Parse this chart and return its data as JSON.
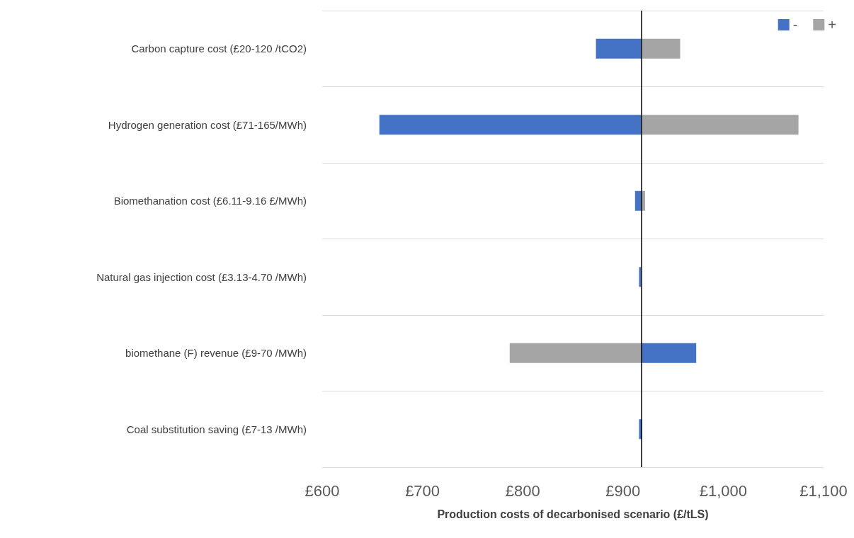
{
  "chart_data": {
    "type": "bar",
    "orientation": "horizontal",
    "xlabel": "Production costs of decarbonised scenario (£/tLS)",
    "categories": [
      "Carbon capture cost (£20-120 /tCO2)",
      "Hydrogen generation cost (£71-165/MWh)",
      "Biomethanation cost (£6.11-9.16 £/MWh)",
      "Natural gas injection cost (£3.13-4.70 /MWh)",
      "biomethane (F) revenue (£9-70 /MWh)",
      "Coal substitution saving (£7-13 /MWh)"
    ],
    "series": [
      {
        "name": "-",
        "color": "#4472c4",
        "base": [
          873,
          657,
          912,
          916,
          918,
          916
        ],
        "values": [
          45,
          261,
          6,
          2,
          55,
          3
        ]
      },
      {
        "name": "+",
        "color": "#a5a5a5",
        "base": [
          918,
          918,
          918,
          null,
          787,
          null
        ],
        "values": [
          39,
          157,
          4,
          null,
          131,
          null
        ]
      }
    ],
    "xlim": [
      600,
      1100
    ],
    "xticks": [
      {
        "value": 600,
        "label": "£600"
      },
      {
        "value": 700,
        "label": "£700"
      },
      {
        "value": 800,
        "label": "£800"
      },
      {
        "value": 900,
        "label": "£900"
      },
      {
        "value": 1000,
        "label": "£1,000"
      },
      {
        "value": 1100,
        "label": "£1,100"
      }
    ],
    "ref_lines": [
      {
        "axis": "x",
        "value": 918,
        "color": "#000000"
      }
    ],
    "grid": "y",
    "legend": "top right"
  }
}
